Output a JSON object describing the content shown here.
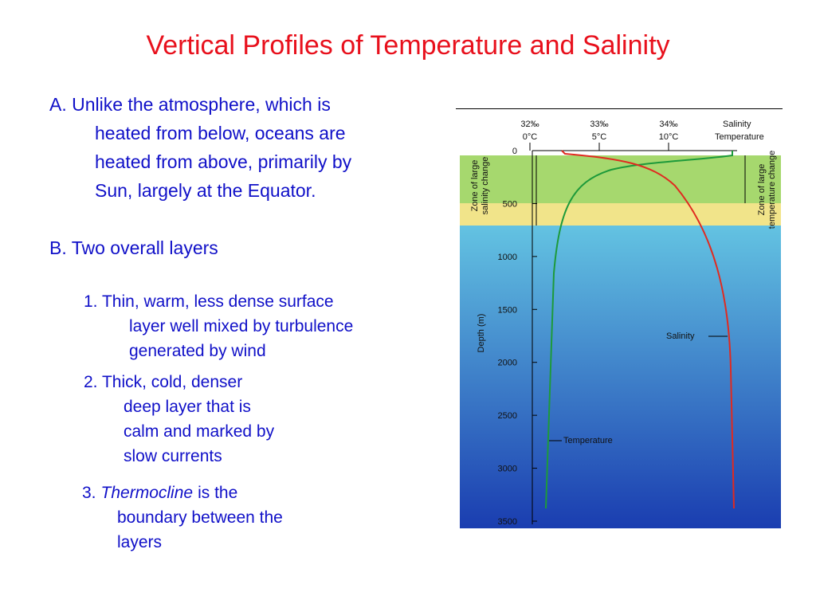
{
  "title": "Vertical Profiles of Temperature and Salinity",
  "points": [
    {
      "lines": [
        "A. Unlike the atmosphere, which is",
        "heated from below, oceans are",
        "heated from above, primarily by",
        "Sun, largely at the Equator."
      ]
    },
    {
      "lines": [
        "B. Two overall layers"
      ]
    }
  ],
  "subpoints": [
    {
      "lines": [
        "1. Thin, warm, less dense surface",
        "layer well mixed by turbulence",
        "generated by wind"
      ]
    },
    {
      "lines": [
        "2. Thick, cold, denser",
        "deep layer that is",
        "calm and marked by",
        "slow currents"
      ]
    },
    {
      "prefix": "3.",
      "term": "Thermocline",
      "rest": "is the",
      "lines": [
        "boundary between the",
        "layers"
      ]
    }
  ],
  "figure": {
    "top_labels": [
      {
        "top": "32‰",
        "bottom": "0°C"
      },
      {
        "top": "33‰",
        "bottom": "5°C"
      },
      {
        "top": "34‰",
        "bottom": "10°C"
      }
    ],
    "legend": [
      "Salinity",
      "Temperature"
    ],
    "left_zone": [
      "Zone of large",
      "salinity change"
    ],
    "right_zone": [
      "Zone of large",
      "temperature change"
    ],
    "y_axis_label": "Depth (m)",
    "yticks": [
      "0",
      "500",
      "1000",
      "1500",
      "2000",
      "2500",
      "3000",
      "3500"
    ],
    "annotations": [
      "Salinity",
      "Temperature"
    ]
  }
}
